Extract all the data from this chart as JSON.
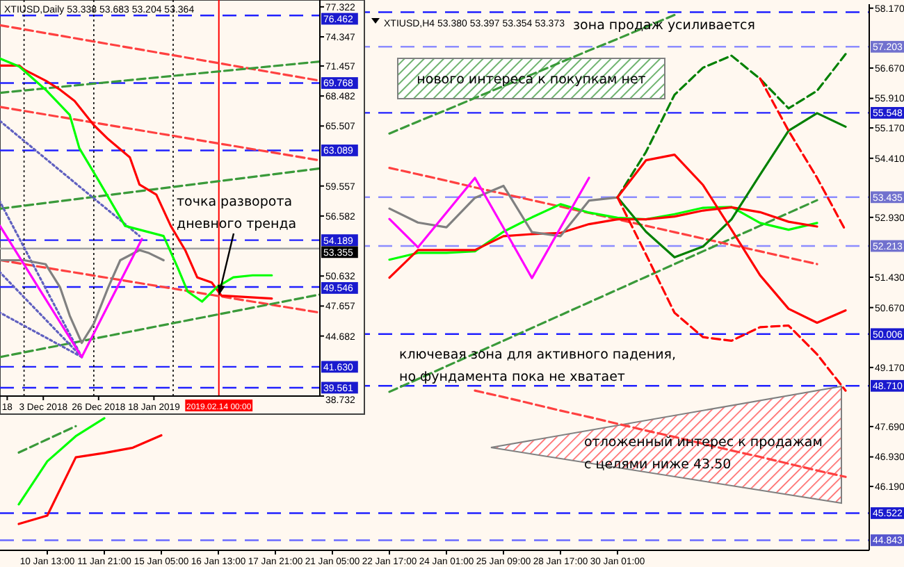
{
  "chart_data": [
    {
      "type": "line",
      "title": "XTIUSD,H4 53.380 53.397 53.354 53.373",
      "ylim": [
        44.59,
        58.27
      ],
      "categories": [
        null,
        "10 Jan 13:00",
        null,
        "11 Jan 21:00",
        null,
        "15 Jan 05:00",
        null,
        "16 Jan 13:00",
        null,
        "17 Jan 21:00",
        null,
        "21 Jan 05:00",
        null,
        "22 Jan 17:00",
        null,
        "24 Jan 01:00",
        null,
        "25 Jan 09:00",
        null,
        "28 Jan 17:00",
        null,
        "30 Jan 01:00",
        null,
        null,
        null,
        null,
        null,
        null,
        null,
        null
      ],
      "yticks": [
        {
          "value": 58.17,
          "label": "58.170"
        },
        {
          "value": 56.67,
          "label": "56.670"
        },
        {
          "value": 55.91,
          "label": "55.910"
        },
        {
          "value": 55.17,
          "label": "55.170"
        },
        {
          "value": 54.41,
          "label": "54.410"
        },
        {
          "value": 52.93,
          "label": "52.930"
        },
        {
          "value": 51.43,
          "label": "51.430"
        },
        {
          "value": 50.67,
          "label": "50.670"
        },
        {
          "value": 49.17,
          "label": "49.170"
        },
        {
          "value": 47.69,
          "label": "47.690"
        },
        {
          "value": 46.93,
          "label": "46.930"
        },
        {
          "value": 46.19,
          "label": "46.190"
        }
      ],
      "ref_lines": [
        {
          "axis": "y",
          "value": 58.07,
          "label": null,
          "color": "#2020ff",
          "line_style": "dashed"
        },
        {
          "axis": "y",
          "value": 57.203,
          "label": "57.203",
          "color": "#8c8cff",
          "line_style": "dashed"
        },
        {
          "axis": "y",
          "value": 55.548,
          "label": "55.548",
          "color": "#2020ff",
          "line_style": "dashed"
        },
        {
          "axis": "y",
          "value": 53.435,
          "label": "53.435",
          "color": "#8c8cff",
          "line_style": "dashed"
        },
        {
          "axis": "y",
          "value": 52.213,
          "label": "52.213",
          "color": "#8c8cff",
          "line_style": "dashed"
        },
        {
          "axis": "y",
          "value": 50.006,
          "label": "50.006",
          "color": "#2020ff",
          "line_style": "dashed"
        },
        {
          "axis": "y",
          "value": 48.71,
          "label": "48.710",
          "color": "#2020ff",
          "line_style": "dashed"
        },
        {
          "axis": "y",
          "value": 45.522,
          "label": "45.522",
          "color": "#2020ff",
          "line_style": "dashed"
        },
        {
          "axis": "y",
          "value": 44.843,
          "label": "44.843",
          "color": "#6a6aff",
          "line_style": "dashed"
        }
      ],
      "annotations": [
        "зона продаж усиливается",
        "нового интереса к покупкам нет",
        "ключевая зона для активного падения,\nно фундамента пока не хватает",
        "отложенный интерес к продажам\nс целями ниже 43.50"
      ],
      "series": [
        {
          "color": "#3a9a3a",
          "line_style": "dashed",
          "values": [
            null,
            null,
            null,
            null,
            null,
            null,
            null,
            null,
            null,
            null,
            null,
            null,
            null,
            55.03,
            55.33,
            55.62,
            55.92,
            56.22,
            56.51,
            56.81,
            57.11,
            57.4,
            57.7,
            58.0,
            null,
            null,
            null,
            null,
            null,
            null
          ]
        },
        {
          "color": "#3a9a3a",
          "line_style": "dashed",
          "values": [
            null,
            null,
            null,
            null,
            null,
            null,
            null,
            null,
            null,
            null,
            null,
            null,
            null,
            48.56,
            48.88,
            49.2,
            49.52,
            49.84,
            50.16,
            50.48,
            50.8,
            51.12,
            51.44,
            51.76,
            52.08,
            52.4,
            52.72,
            53.04,
            53.36,
            null
          ]
        },
        {
          "color": "#3a9a3a",
          "line_style": "dashed",
          "values": [
            47.04,
            47.37,
            47.7,
            null,
            null,
            null,
            null,
            null,
            null,
            null,
            null,
            null,
            null,
            null,
            null,
            null,
            null,
            null,
            null,
            null,
            null,
            null,
            null,
            null,
            null,
            null,
            null,
            null,
            null,
            null
          ]
        },
        {
          "color": "#ff4040",
          "line_style": "dashed",
          "values": [
            null,
            null,
            null,
            null,
            null,
            null,
            null,
            null,
            null,
            null,
            null,
            null,
            null,
            54.17,
            54.01,
            53.85,
            53.68,
            53.52,
            53.36,
            53.2,
            53.04,
            52.88,
            52.72,
            52.56,
            52.4,
            52.24,
            52.08,
            51.92,
            51.76,
            null
          ]
        },
        {
          "color": "#ff4040",
          "line_style": "dashed",
          "values": [
            null,
            null,
            null,
            null,
            null,
            null,
            null,
            null,
            null,
            null,
            null,
            null,
            null,
            null,
            null,
            null,
            48.59,
            48.43,
            48.26,
            48.09,
            47.93,
            47.76,
            47.59,
            47.43,
            47.26,
            47.09,
            46.93,
            46.76,
            46.59,
            46.43
          ]
        },
        {
          "color": "#00ff00",
          "values": [
            45.74,
            46.82,
            47.45,
            47.9,
            null,
            null,
            null,
            null,
            null,
            null,
            null,
            null,
            null,
            51.87,
            52.04,
            52.04,
            52.08,
            52.57,
            52.93,
            53.26,
            53.05,
            52.92,
            52.88,
            53.01,
            53.17,
            53.19,
            52.79,
            52.62,
            52.79,
            null
          ]
        },
        {
          "color": "#ff0000",
          "values": [
            45.25,
            45.46,
            46.92,
            47.03,
            47.16,
            47.47,
            null,
            null,
            null,
            null,
            null,
            null,
            null,
            51.42,
            52.11,
            52.11,
            52.11,
            52.46,
            52.51,
            52.54,
            52.76,
            52.88,
            52.88,
            52.95,
            53.1,
            53.18,
            53.06,
            52.82,
            52.7,
            null
          ]
        },
        {
          "color": "#808080",
          "values": [
            null,
            null,
            null,
            null,
            null,
            null,
            null,
            null,
            null,
            null,
            null,
            null,
            null,
            53.15,
            52.8,
            52.68,
            53.42,
            53.72,
            52.56,
            52.46,
            53.35,
            53.43,
            null,
            null,
            null,
            null,
            null,
            null,
            null,
            null
          ]
        },
        {
          "color": "#ff00ff",
          "values": [
            null,
            null,
            null,
            null,
            null,
            null,
            null,
            null,
            null,
            null,
            null,
            null,
            null,
            52.89,
            52.18,
            53.05,
            53.92,
            52.67,
            51.41,
            52.67,
            53.92,
            null,
            null,
            null,
            null,
            null,
            null,
            null,
            null,
            null
          ]
        },
        {
          "color": "#008000",
          "line_style": "dashed",
          "values": [
            null,
            null,
            null,
            null,
            null,
            null,
            null,
            null,
            null,
            null,
            null,
            null,
            null,
            null,
            null,
            null,
            null,
            null,
            null,
            null,
            null,
            53.43,
            54.57,
            56.0,
            56.68,
            56.98,
            56.4,
            55.66,
            56.1,
            57.02
          ]
        },
        {
          "color": "#008000",
          "values": [
            null,
            null,
            null,
            null,
            null,
            null,
            null,
            null,
            null,
            null,
            null,
            null,
            null,
            null,
            null,
            null,
            null,
            null,
            null,
            null,
            null,
            53.43,
            52.57,
            51.93,
            52.2,
            52.88,
            54.0,
            55.1,
            55.54,
            55.2
          ]
        },
        {
          "color": "#ff0000",
          "values": [
            null,
            null,
            null,
            null,
            null,
            null,
            null,
            null,
            null,
            null,
            null,
            null,
            null,
            null,
            null,
            null,
            null,
            null,
            null,
            null,
            null,
            53.43,
            54.36,
            54.5,
            53.74,
            52.62,
            51.48,
            50.64,
            50.29,
            50.6
          ]
        },
        {
          "color": "#ff0000",
          "line_style": "dashed",
          "values": [
            null,
            null,
            null,
            null,
            null,
            null,
            null,
            null,
            null,
            null,
            null,
            null,
            null,
            null,
            null,
            null,
            null,
            null,
            null,
            null,
            null,
            53.43,
            52.0,
            50.54,
            49.93,
            49.84,
            50.18,
            50.22,
            49.5,
            48.59
          ]
        },
        {
          "color": "#ff0000",
          "line_style": "dashed",
          "values": [
            null,
            null,
            null,
            null,
            null,
            null,
            null,
            null,
            null,
            null,
            null,
            null,
            null,
            null,
            null,
            null,
            null,
            null,
            null,
            null,
            null,
            null,
            null,
            null,
            null,
            null,
            56.41,
            55.1,
            53.92,
            52.6
          ]
        }
      ]
    },
    {
      "type": "line",
      "title": "XTIUSD,Daily 53.338 53.683 53.204 53.364",
      "xlim": [
        "2018-11-15",
        "2019-03-28"
      ],
      "ylim": [
        38.73,
        78.0
      ],
      "xticks": [
        {
          "value": "2018-11-18",
          "label": "18"
        },
        {
          "value": "2018-12-03",
          "label": "3 Dec 2018"
        },
        {
          "value": "2018-12-26",
          "label": "26 Dec 2018"
        },
        {
          "value": "2019-01-18",
          "label": "18 Jan 2019"
        }
      ],
      "yticks": [
        77.322,
        74.347,
        71.457,
        68.482,
        65.507,
        59.557,
        56.582,
        50.632,
        47.657,
        44.682,
        38.732
      ],
      "ref_lines": [
        {
          "axis": "y",
          "value": 76.462,
          "label": "76.462",
          "color": "#2020ff",
          "line_style": "dashed"
        },
        {
          "axis": "y",
          "value": 69.768,
          "label": "69.768",
          "color": "#2020ff",
          "line_style": "dashed"
        },
        {
          "axis": "y",
          "value": 63.089,
          "label": "63.089",
          "color": "#2020ff",
          "line_style": "dashed"
        },
        {
          "axis": "y",
          "value": 54.189,
          "label": "54.189",
          "color": "#2020ff",
          "line_style": "dashed"
        },
        {
          "axis": "y",
          "value": 53.355,
          "label": "53.355",
          "color": "#a0a0a0",
          "line_style": "solid"
        },
        {
          "axis": "y",
          "value": 49.546,
          "label": "49.546",
          "color": "#2020ff",
          "line_style": "dashed"
        },
        {
          "axis": "y",
          "value": 41.63,
          "label": "41.630",
          "color": "#2020ff",
          "line_style": "dashed"
        },
        {
          "axis": "y",
          "value": 39.561,
          "label": "39.561",
          "color": "#2020ff",
          "line_style": "dashed"
        },
        {
          "axis": "x",
          "value": "2018-11-25",
          "label": null,
          "color": "#000000",
          "line_style": "dotted"
        },
        {
          "axis": "x",
          "value": "2018-12-24",
          "label": null,
          "color": "#000000",
          "line_style": "dotted"
        },
        {
          "axis": "x",
          "value": "2019-01-26",
          "label": null,
          "color": "#000000",
          "line_style": "dotted"
        },
        {
          "axis": "x",
          "value": "2019-02-14",
          "label": "2019.02.14 00:00",
          "color": "#ff0000",
          "line_style": "solid"
        }
      ],
      "annotations": [
        {
          "text": "точка разворота\nдневного тренда",
          "x": "2019-02-14",
          "y": 48.7
        }
      ],
      "series": [
        {
          "color": "#ff4040",
          "line_style": "dashed",
          "x": [
            "2018-11-15",
            "2019-03-28"
          ],
          "values": [
            75.5,
            70.0
          ]
        },
        {
          "color": "#ff4040",
          "line_style": "dashed",
          "x": [
            "2018-11-15",
            "2019-03-28"
          ],
          "values": [
            67.4,
            62.1
          ]
        },
        {
          "color": "#ff4040",
          "line_style": "dashed",
          "x": [
            "2018-11-15",
            "2019-03-28"
          ],
          "values": [
            52.2,
            47.0
          ]
        },
        {
          "color": "#3a9a3a",
          "line_style": "dashed",
          "x": [
            "2018-11-15",
            "2019-03-28"
          ],
          "values": [
            57.3,
            61.3
          ]
        },
        {
          "color": "#3a9a3a",
          "line_style": "dashed",
          "x": [
            "2018-11-15",
            "2019-03-28"
          ],
          "values": [
            42.6,
            48.8
          ]
        },
        {
          "color": "#3a9a3a",
          "line_style": "dashed",
          "x": [
            "2018-11-15",
            "2019-03-28"
          ],
          "values": [
            68.8,
            71.9
          ]
        },
        {
          "color": "#6060c0",
          "line_style": "dotted",
          "x": [
            "2018-12-19",
            "2018-11-15"
          ],
          "values": [
            42.6,
            58.0
          ]
        },
        {
          "color": "#6060c0",
          "line_style": "dotted",
          "x": [
            "2018-12-19",
            "2018-11-15"
          ],
          "values": [
            42.6,
            51.0
          ]
        },
        {
          "color": "#6060c0",
          "line_style": "dotted",
          "x": [
            "2018-12-19",
            "2018-11-15"
          ],
          "values": [
            42.6,
            47.0
          ]
        },
        {
          "color": "#6060c0",
          "line_style": "dotted",
          "x": [
            "2018-11-15",
            "2019-01-12"
          ],
          "values": [
            66.0,
            54.6
          ]
        },
        {
          "color": "#ff0000",
          "x": [
            "2018-11-15",
            "2018-11-23",
            "2018-11-25",
            "2018-12-04",
            "2018-12-10",
            "2018-12-16",
            "2018-12-24",
            "2018-12-30",
            "2019-01-08",
            "2019-01-12",
            "2019-01-19",
            "2019-01-25",
            "2019-01-31",
            "2019-02-05",
            "2019-02-11",
            "2019-02-15",
            "2019-03-08"
          ],
          "values": [
            71.5,
            71.5,
            71.1,
            70.0,
            69.1,
            68.0,
            65.6,
            64.2,
            62.4,
            59.7,
            58.7,
            55.6,
            53.2,
            50.5,
            50.0,
            48.7,
            48.4
          ]
        },
        {
          "color": "#00ff00",
          "x": [
            "2018-11-15",
            "2018-11-23",
            "2018-12-04",
            "2018-12-14",
            "2018-12-18",
            "2018-12-26",
            "2019-01-06",
            "2019-01-22",
            "2019-01-28",
            "2019-02-01",
            "2019-02-07",
            "2019-02-13",
            "2019-02-20",
            "2019-02-28",
            "2019-03-08"
          ],
          "values": [
            72.2,
            71.4,
            69.1,
            66.6,
            63.3,
            60.1,
            55.6,
            54.6,
            51.4,
            49.1,
            48.1,
            49.5,
            50.5,
            50.7,
            50.7
          ]
        },
        {
          "color": "#808080",
          "x": [
            "2018-11-15",
            "2018-11-25",
            "2018-12-04",
            "2018-12-10",
            "2018-12-14",
            "2018-12-19",
            "2018-12-24",
            "2018-12-30",
            "2019-01-04",
            "2019-01-12",
            "2019-01-16",
            "2019-01-22"
          ],
          "values": [
            52.2,
            52.2,
            51.8,
            49.5,
            46.7,
            44.0,
            45.9,
            49.5,
            52.2,
            53.2,
            52.9,
            52.2
          ]
        },
        {
          "color": "#ff00ff",
          "x": [
            "2018-11-15",
            "2018-12-19",
            "2019-01-13"
          ],
          "values": [
            55.6,
            42.6,
            54.3
          ]
        }
      ]
    }
  ]
}
